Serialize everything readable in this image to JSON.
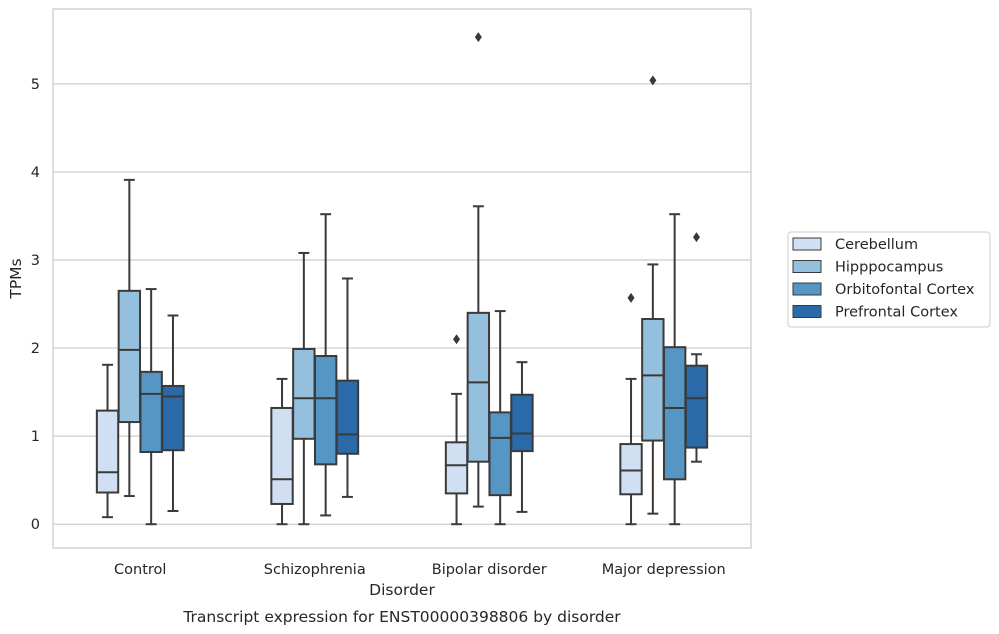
{
  "chart_data": {
    "type": "box",
    "caption": "Transcript expression for ENST00000398806 by disorder",
    "xlabel": "Disorder",
    "ylabel": "TPMs",
    "ylim": [
      -0.27,
      5.85
    ],
    "yticks": [
      0,
      1,
      2,
      3,
      4,
      5
    ],
    "categories": [
      "Control",
      "Schizophrenia",
      "Bipolar disorder",
      "Major depression"
    ],
    "grid": "horizontal",
    "legend_position": "right",
    "series": [
      {
        "name": "Cerebellum",
        "color": "#d0e0f2",
        "boxes": [
          {
            "whislo": 0.08,
            "q1": 0.36,
            "med": 0.59,
            "q3": 1.29,
            "whishi": 1.81,
            "fliers": []
          },
          {
            "whislo": 0.0,
            "q1": 0.23,
            "med": 0.51,
            "q3": 1.32,
            "whishi": 1.65,
            "fliers": []
          },
          {
            "whislo": 0.0,
            "q1": 0.35,
            "med": 0.67,
            "q3": 0.93,
            "whishi": 1.48,
            "fliers": [
              2.1
            ]
          },
          {
            "whislo": 0.0,
            "q1": 0.34,
            "med": 0.61,
            "q3": 0.91,
            "whishi": 1.65,
            "fliers": [
              2.57
            ]
          }
        ]
      },
      {
        "name": "Hipppocampus",
        "color": "#94c0dd",
        "boxes": [
          {
            "whislo": 0.32,
            "q1": 1.16,
            "med": 1.98,
            "q3": 2.65,
            "whishi": 3.91,
            "fliers": []
          },
          {
            "whislo": 0.0,
            "q1": 0.97,
            "med": 1.43,
            "q3": 1.99,
            "whishi": 3.08,
            "fliers": []
          },
          {
            "whislo": 0.2,
            "q1": 0.71,
            "med": 1.61,
            "q3": 2.4,
            "whishi": 3.61,
            "fliers": [
              5.53
            ]
          },
          {
            "whislo": 0.12,
            "q1": 0.95,
            "med": 1.69,
            "q3": 2.33,
            "whishi": 2.95,
            "fliers": [
              5.04
            ]
          }
        ]
      },
      {
        "name": "Orbitofontal Cortex",
        "color": "#5596c5",
        "boxes": [
          {
            "whislo": 0.0,
            "q1": 0.82,
            "med": 1.48,
            "q3": 1.73,
            "whishi": 2.67,
            "fliers": []
          },
          {
            "whislo": 0.1,
            "q1": 0.68,
            "med": 1.43,
            "q3": 1.91,
            "whishi": 3.52,
            "fliers": []
          },
          {
            "whislo": 0.0,
            "q1": 0.33,
            "med": 0.98,
            "q3": 1.27,
            "whishi": 2.42,
            "fliers": []
          },
          {
            "whislo": 0.0,
            "q1": 0.51,
            "med": 1.32,
            "q3": 2.01,
            "whishi": 3.52,
            "fliers": []
          }
        ]
      },
      {
        "name": "Prefrontal Cortex",
        "color": "#2a6aa8",
        "boxes": [
          {
            "whislo": 0.15,
            "q1": 0.84,
            "med": 1.45,
            "q3": 1.57,
            "whishi": 2.37,
            "fliers": []
          },
          {
            "whislo": 0.31,
            "q1": 0.8,
            "med": 1.02,
            "q3": 1.63,
            "whishi": 2.79,
            "fliers": []
          },
          {
            "whislo": 0.14,
            "q1": 0.83,
            "med": 1.03,
            "q3": 1.47,
            "whishi": 1.84,
            "fliers": []
          },
          {
            "whislo": 0.71,
            "q1": 0.87,
            "med": 1.43,
            "q3": 1.8,
            "whishi": 1.93,
            "fliers": [
              3.26
            ]
          }
        ]
      }
    ]
  }
}
